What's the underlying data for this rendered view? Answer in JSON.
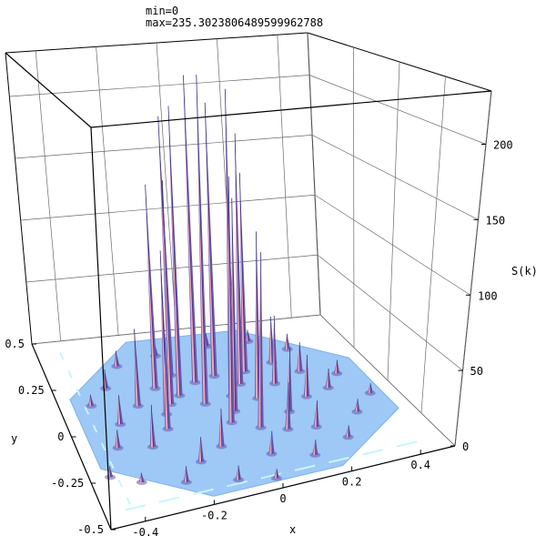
{
  "header": {
    "min_line": "min=0",
    "max_line": "max=235.3023806489599962788"
  },
  "chart_data": {
    "type": "surface",
    "title": "",
    "xlabel": "x",
    "ylabel": "y",
    "zlabel": "S(k)",
    "xlim": [
      -0.5,
      0.5
    ],
    "ylim": [
      -0.5,
      0.5
    ],
    "zlim": [
      0,
      235.30238064896
    ],
    "x_ticks": [
      {
        "value": -0.4,
        "label": "-0.4"
      },
      {
        "value": -0.2,
        "label": "-0.2"
      },
      {
        "value": 0,
        "label": "0"
      },
      {
        "value": 0.2,
        "label": "0.2"
      },
      {
        "value": 0.4,
        "label": "0.4"
      }
    ],
    "y_ticks": [
      {
        "value": 0.5,
        "label": "0.5"
      },
      {
        "value": 0.25,
        "label": "0.25"
      },
      {
        "value": 0,
        "label": "0"
      },
      {
        "value": -0.25,
        "label": "-0.25"
      },
      {
        "value": -0.5,
        "label": "-0.5"
      }
    ],
    "z_ticks": [
      {
        "value": 0,
        "label": "0"
      },
      {
        "value": 50,
        "label": "50"
      },
      {
        "value": 100,
        "label": "100"
      },
      {
        "value": 150,
        "label": "150"
      },
      {
        "value": 200,
        "label": "200"
      }
    ],
    "grid": true,
    "colors": {
      "base_surface": "#9ec8f5",
      "base_highlight": "#c8f5ff",
      "peak_front": "#f0a8b8",
      "peak_back": "#6a5ab0",
      "peak_outline": "#3a3080"
    },
    "peaks": [
      {
        "x": -0.06,
        "y": 0.05,
        "z": 235
      },
      {
        "x": -0.05,
        "y": 0.18,
        "z": 228
      },
      {
        "x": 0.03,
        "y": 0.07,
        "z": 222
      },
      {
        "x": -0.12,
        "y": 0.12,
        "z": 210
      },
      {
        "x": 0.02,
        "y": 0.2,
        "z": 205
      },
      {
        "x": -0.11,
        "y": 0.24,
        "z": 195
      },
      {
        "x": 0.08,
        "y": 0.13,
        "z": 185
      },
      {
        "x": -0.16,
        "y": 0.08,
        "z": 160
      },
      {
        "x": -0.02,
        "y": -0.08,
        "z": 170
      },
      {
        "x": 0.01,
        "y": -0.02,
        "z": 150
      },
      {
        "x": -0.18,
        "y": 0.18,
        "z": 150
      },
      {
        "x": 0.12,
        "y": 0.2,
        "z": 150
      },
      {
        "x": 0.1,
        "y": 0.03,
        "z": 120
      },
      {
        "x": -0.19,
        "y": 0.03,
        "z": 115
      },
      {
        "x": 0.05,
        "y": -0.14,
        "z": 120
      },
      {
        "x": -0.21,
        "y": -0.05,
        "z": 65
      },
      {
        "x": -0.26,
        "y": 0.1,
        "z": 55
      },
      {
        "x": 0.18,
        "y": 0.1,
        "z": 50
      },
      {
        "x": 0.16,
        "y": -0.08,
        "z": 45
      },
      {
        "x": 0.22,
        "y": 0.23,
        "z": 35
      },
      {
        "x": 0.24,
        "y": -0.01,
        "z": 30
      },
      {
        "x": -0.28,
        "y": -0.13,
        "z": 28
      },
      {
        "x": 0.12,
        "y": -0.18,
        "z": 32
      },
      {
        "x": -0.09,
        "y": -0.2,
        "z": 25
      },
      {
        "x": 0.28,
        "y": 0.15,
        "z": 22
      },
      {
        "x": -0.34,
        "y": 0.02,
        "z": 20
      },
      {
        "x": 0.2,
        "y": -0.2,
        "z": 18
      },
      {
        "x": -0.17,
        "y": -0.26,
        "z": 16
      },
      {
        "x": 0.03,
        "y": -0.3,
        "z": 15
      },
      {
        "x": 0.32,
        "y": 0.02,
        "z": 14
      },
      {
        "x": -0.33,
        "y": 0.22,
        "z": 14
      },
      {
        "x": 0.3,
        "y": 0.3,
        "z": 12
      },
      {
        "x": -0.26,
        "y": 0.33,
        "z": 12
      },
      {
        "x": -0.38,
        "y": -0.1,
        "z": 12
      },
      {
        "x": 0.38,
        "y": 0.1,
        "z": 10
      },
      {
        "x": -0.24,
        "y": -0.35,
        "z": 10
      },
      {
        "x": 0.14,
        "y": -0.36,
        "z": 10
      },
      {
        "x": -0.1,
        "y": -0.4,
        "z": 9
      },
      {
        "x": 0.34,
        "y": -0.16,
        "z": 9
      },
      {
        "x": 0.26,
        "y": -0.3,
        "z": 8
      },
      {
        "x": -0.4,
        "y": 0.14,
        "z": 8
      },
      {
        "x": -0.12,
        "y": 0.36,
        "z": 10
      },
      {
        "x": 0.06,
        "y": 0.38,
        "z": 10
      },
      {
        "x": 0.2,
        "y": 0.38,
        "z": 9
      },
      {
        "x": 0.42,
        "y": -0.06,
        "z": 7
      },
      {
        "x": -0.44,
        "y": -0.24,
        "z": 7
      },
      {
        "x": 0.0,
        "y": -0.44,
        "z": 6
      },
      {
        "x": -0.36,
        "y": -0.3,
        "z": 6
      }
    ]
  }
}
